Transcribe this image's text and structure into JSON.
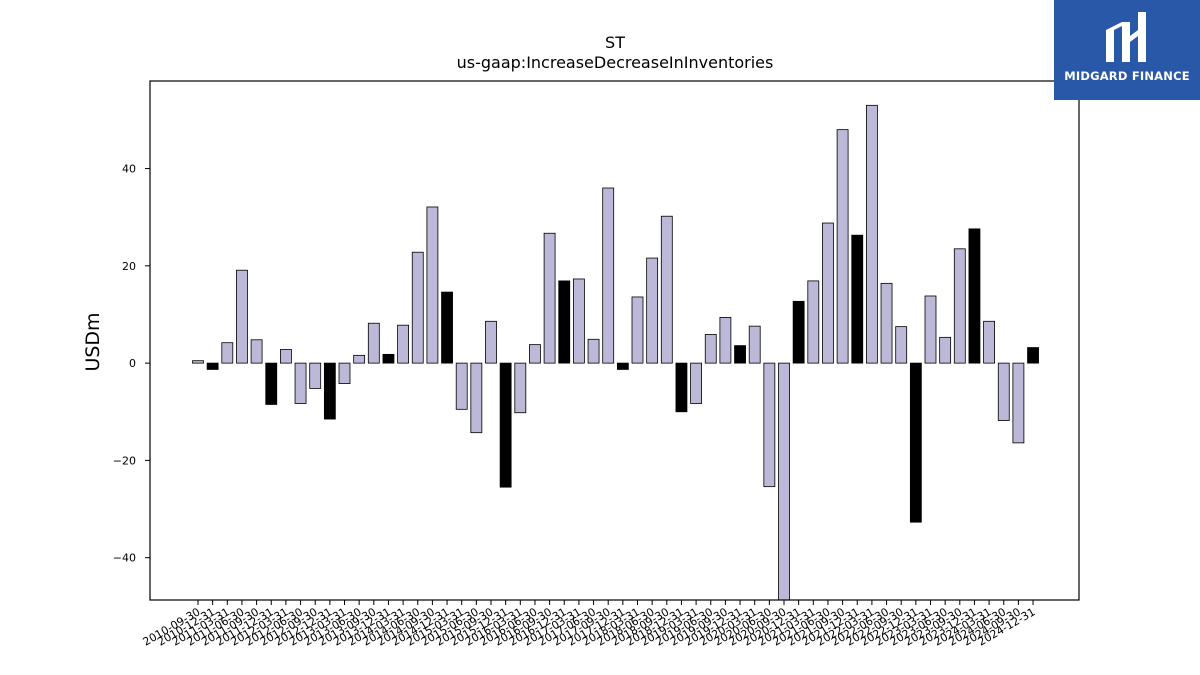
{
  "chart_data": {
    "type": "bar",
    "title": "ST",
    "subtitle": "us-gaap:IncreaseDecreaseInInventories",
    "xlabel": "",
    "ylabel": "USDm",
    "ylim": [
      -48.7,
      58.0
    ],
    "yticks": [
      -40,
      -20,
      0,
      20,
      40
    ],
    "grid": false,
    "colors": {
      "default": "#bcb8d8",
      "highlight": "#000000",
      "edge": "#000000"
    },
    "categories": [
      "2010-09-30",
      "2010-12-31",
      "2011-03-31",
      "2011-06-30",
      "2011-09-30",
      "2011-12-31",
      "2012-03-31",
      "2012-06-30",
      "2012-09-30",
      "2012-12-31",
      "2013-03-31",
      "2013-06-30",
      "2013-09-30",
      "2013-12-31",
      "2014-03-31",
      "2014-06-30",
      "2014-09-30",
      "2014-12-31",
      "2015-03-31",
      "2015-06-30",
      "2015-09-30",
      "2015-12-31",
      "2016-03-31",
      "2016-06-30",
      "2016-09-30",
      "2016-12-31",
      "2017-03-31",
      "2017-06-30",
      "2017-09-30",
      "2017-12-31",
      "2018-03-31",
      "2018-06-30",
      "2018-09-30",
      "2018-12-31",
      "2019-03-31",
      "2019-06-30",
      "2019-09-30",
      "2019-12-31",
      "2020-03-31",
      "2020-06-30",
      "2020-09-30",
      "2020-12-31",
      "2021-03-31",
      "2021-06-30",
      "2021-09-30",
      "2021-12-31",
      "2022-03-31",
      "2022-06-30",
      "2022-09-30",
      "2022-12-31",
      "2023-03-31",
      "2023-06-30",
      "2023-09-30",
      "2023-12-31",
      "2024-03-31",
      "2024-06-30",
      "2024-09-30",
      "2024-12-31"
    ],
    "values": [
      0.5,
      -1.3,
      4.2,
      19.1,
      4.8,
      -8.5,
      2.8,
      -8.3,
      -5.2,
      -11.5,
      -4.2,
      1.6,
      8.2,
      1.8,
      7.8,
      22.8,
      32.1,
      14.6,
      -9.5,
      -14.3,
      8.6,
      -25.5,
      -10.2,
      3.8,
      26.7,
      16.9,
      17.3,
      4.9,
      36.0,
      -1.3,
      13.6,
      21.6,
      30.2,
      -10.0,
      -8.3,
      5.9,
      9.4,
      3.6,
      7.6,
      -25.4,
      -48.7,
      12.7,
      16.9,
      28.8,
      48.0,
      26.3,
      53.0,
      16.4,
      7.5,
      -32.7,
      13.8,
      5.3,
      23.5,
      27.6,
      8.6,
      -11.8,
      -16.4,
      3.2
    ],
    "highlight": [
      false,
      true,
      false,
      false,
      false,
      true,
      false,
      false,
      false,
      true,
      false,
      false,
      false,
      true,
      false,
      false,
      false,
      true,
      false,
      false,
      false,
      true,
      false,
      false,
      false,
      true,
      false,
      false,
      false,
      true,
      false,
      false,
      false,
      true,
      false,
      false,
      false,
      true,
      false,
      false,
      false,
      true,
      false,
      false,
      false,
      true,
      false,
      false,
      false,
      true,
      false,
      false,
      false,
      true,
      false,
      false,
      false,
      true
    ]
  },
  "logo": {
    "text": "MIDGARD FINANCE"
  }
}
